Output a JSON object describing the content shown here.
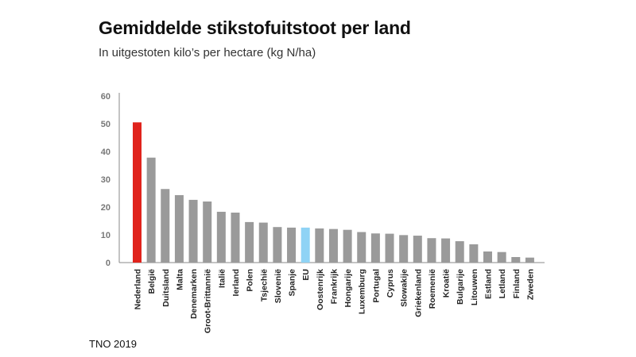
{
  "header": {
    "title": "Gemiddelde stikstofuitstoot per land",
    "subtitle": "In uitgestoten kilo’s per hectare (kg N/ha)"
  },
  "footer": {
    "source": "TNO 2019"
  },
  "colors": {
    "default": "#9a9a9a",
    "highlight": "#e0231c",
    "eu": "#8fd3f5",
    "axis": "#888888",
    "tick_label": "#777777"
  },
  "chart_data": {
    "type": "bar",
    "title": "Gemiddelde stikstofuitstoot per land",
    "subtitle": "In uitgestoten kilo’s per hectare (kg N/ha)",
    "xlabel": "",
    "ylabel": "",
    "ylim": [
      0,
      60
    ],
    "yticks": [
      0,
      10,
      20,
      30,
      40,
      50,
      60
    ],
    "grid": false,
    "categories": [
      "Nederland",
      "België",
      "Duitsland",
      "Malta",
      "Denemarken",
      "Groot-Brittannië",
      "Italië",
      "Ierland",
      "Polen",
      "Tsjechië",
      "Slovenië",
      "Spanje",
      "EU",
      "Oostenrijk",
      "Frankrijk",
      "Hongarije",
      "Luxemburg",
      "Portugal",
      "Cyprus",
      "Slowakije",
      "Griekenland",
      "Roemenië",
      "Kroatië",
      "Bulgarije",
      "Litouwen",
      "Estland",
      "Letland",
      "Finland",
      "Zweden"
    ],
    "values": [
      50.5,
      37.8,
      26.5,
      24.3,
      22.6,
      22.0,
      18.3,
      18.0,
      14.6,
      14.4,
      12.8,
      12.6,
      12.6,
      12.3,
      12.1,
      11.8,
      11.0,
      10.5,
      10.4,
      9.9,
      9.7,
      8.8,
      8.7,
      7.7,
      6.6,
      4.0,
      3.8,
      2.0,
      1.8
    ],
    "highlight": {
      "Nederland": "highlight",
      "EU": "eu"
    }
  }
}
